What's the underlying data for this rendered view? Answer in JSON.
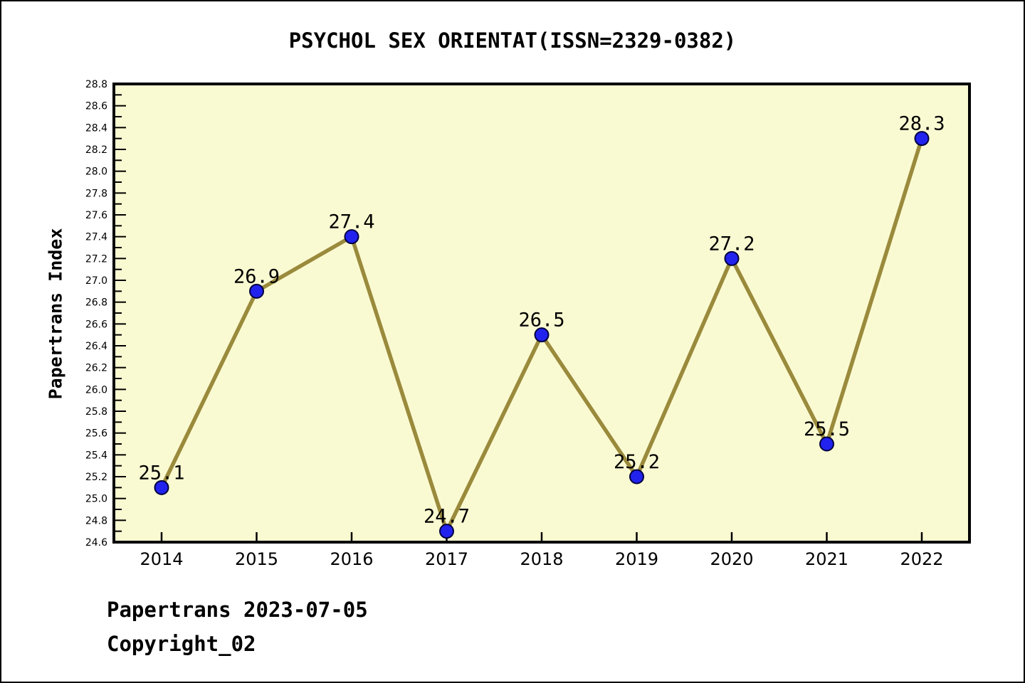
{
  "title": "PSYCHOL SEX ORIENTAT(ISSN=2329-0382)",
  "footer": {
    "line1": "Papertrans 2023-07-05",
    "line2": "Copyright_02"
  },
  "chart_data": {
    "type": "line",
    "title": "PSYCHOL SEX ORIENTAT(ISSN=2329-0382)",
    "categories": [
      "2014",
      "2015",
      "2016",
      "2017",
      "2018",
      "2019",
      "2020",
      "2021",
      "2022"
    ],
    "values": [
      25.1,
      26.9,
      27.4,
      24.7,
      26.5,
      25.2,
      27.2,
      25.5,
      28.3
    ],
    "xlabel": "",
    "ylabel": "Papertrans Index",
    "ylim": [
      24.6,
      28.8
    ],
    "ytick_major_step": 0.2,
    "ytick_minor_step": 0.1,
    "grid": false,
    "legend": null,
    "point_labels": [
      "25.1",
      "26.9",
      "27.4",
      "24.7",
      "26.5",
      "25.2",
      "27.2",
      "25.5",
      "28.3"
    ],
    "colors": {
      "plot_background": "#fafad2",
      "line": "#9a8a3c",
      "marker_fill": "#2222ee",
      "marker_edge": "#000040",
      "axis": "#000000",
      "text": "#000000"
    }
  }
}
